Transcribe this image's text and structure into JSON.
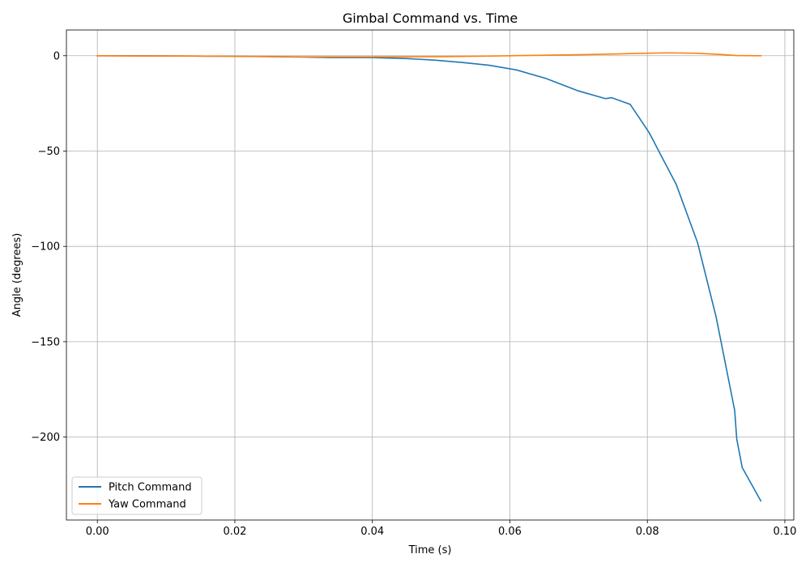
{
  "chart_data": {
    "type": "line",
    "title": "Gimbal Command vs. Time",
    "xlabel": "Time (s)",
    "ylabel": "Angle (degrees)",
    "xlim": [
      -0.0045,
      0.1013
    ],
    "ylim": [
      -243.5,
      13.5
    ],
    "xticks": [
      0.0,
      0.02,
      0.04,
      0.06,
      0.08,
      0.1
    ],
    "xtick_labels": [
      "0.00",
      "0.02",
      "0.04",
      "0.06",
      "0.08",
      "0.10"
    ],
    "yticks": [
      0,
      -50,
      -100,
      -150,
      -200
    ],
    "ytick_labels": [
      "0",
      "−50",
      "−100",
      "−150",
      "−200"
    ],
    "grid": true,
    "legend_position": "lower-left",
    "series": [
      {
        "name": "Pitch Command",
        "color": "#1f77b4",
        "x": [
          0.0,
          0.01,
          0.02,
          0.03,
          0.034,
          0.04,
          0.045,
          0.049,
          0.053,
          0.057,
          0.061,
          0.0653,
          0.07,
          0.0739,
          0.0748,
          0.0775,
          0.0802,
          0.0808,
          0.0818,
          0.0842,
          0.0873,
          0.09,
          0.0927,
          0.093,
          0.0938,
          0.0965
        ],
        "y": [
          0,
          -0.1,
          -0.3,
          -0.7,
          -1.0,
          -1.0,
          -1.5,
          -2.3,
          -3.5,
          -5.0,
          -7.5,
          -12.0,
          -18.5,
          -22.5,
          -22.0,
          -25.5,
          -40.0,
          -44.0,
          -51.0,
          -67.5,
          -98.0,
          -137.0,
          -186.0,
          -201.0,
          -216.0,
          -233.5
        ]
      },
      {
        "name": "Yaw Command",
        "color": "#ff7f0e",
        "x": [
          0.0,
          0.02,
          0.03,
          0.04,
          0.05,
          0.057,
          0.06,
          0.07,
          0.08,
          0.083,
          0.087,
          0.09,
          0.093,
          0.0965
        ],
        "y": [
          0,
          -0.3,
          -0.6,
          -0.6,
          -0.5,
          -0.2,
          0.0,
          0.5,
          1.3,
          1.5,
          1.3,
          0.8,
          0.1,
          0.0
        ]
      }
    ]
  }
}
